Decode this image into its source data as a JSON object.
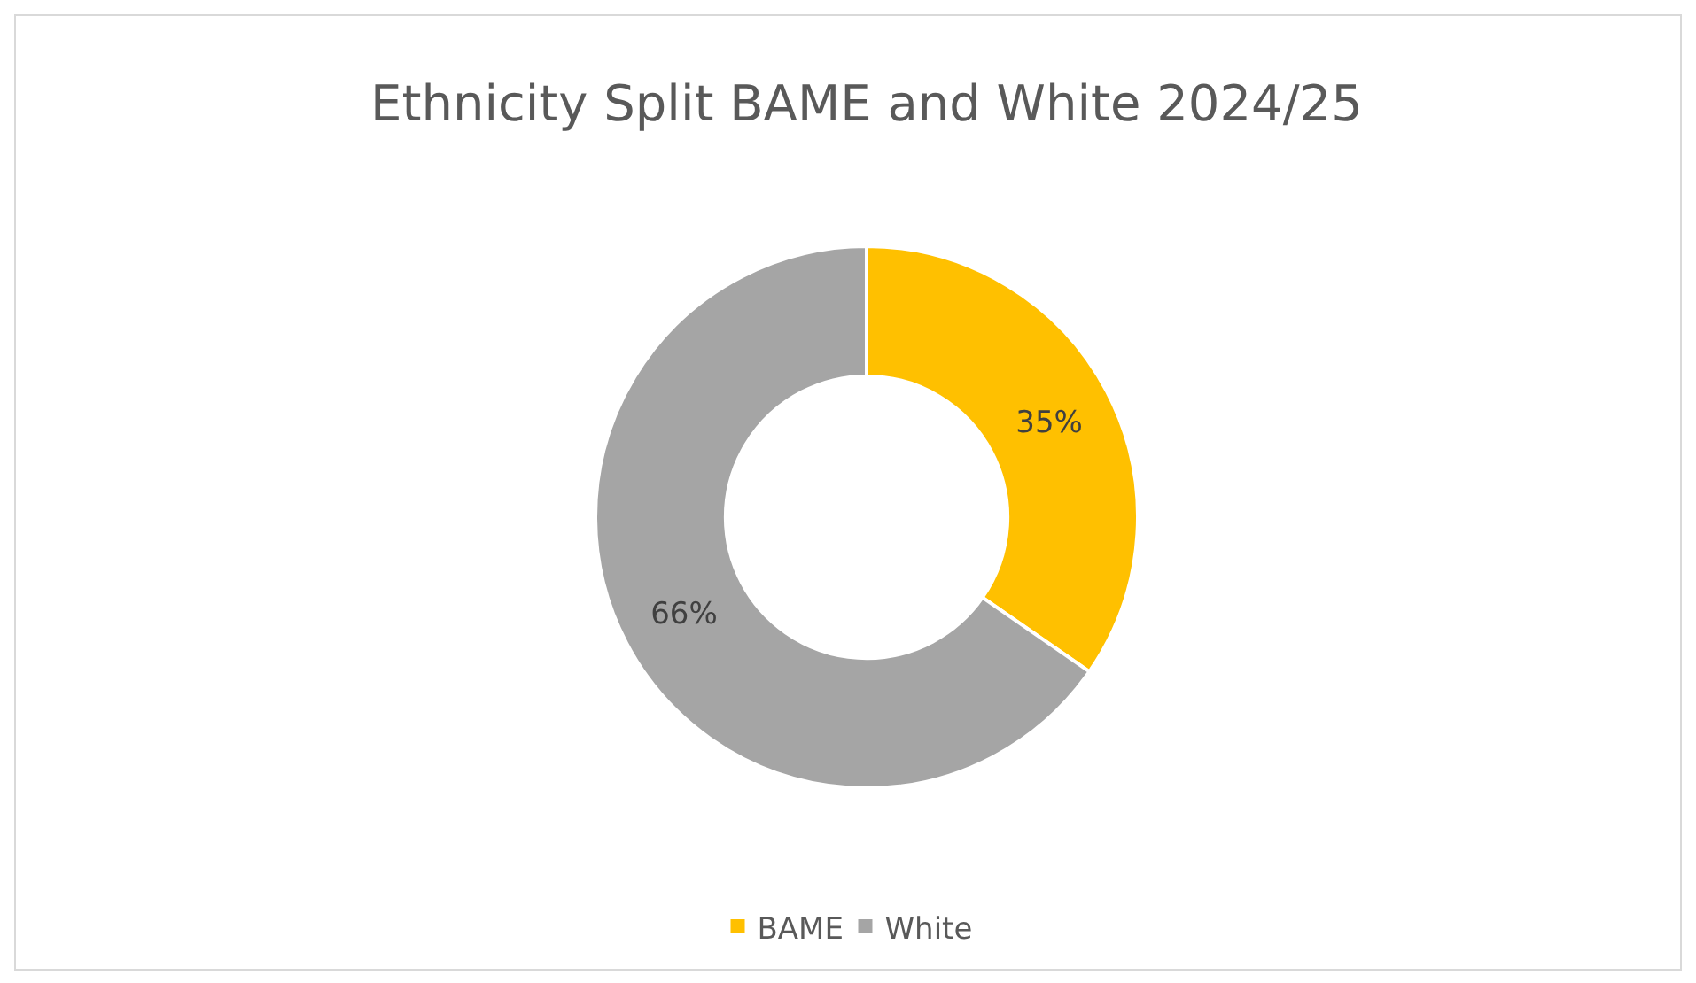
{
  "chart_data": {
    "type": "donut",
    "title": "Ethnicity Split BAME and White 2024/25",
    "categories": [
      "BAME",
      "White"
    ],
    "values": [
      35,
      66
    ],
    "colors": [
      "#ffc000",
      "#a5a5a5"
    ],
    "value_labels": [
      "35%",
      "66%"
    ],
    "legend": "bottom"
  }
}
